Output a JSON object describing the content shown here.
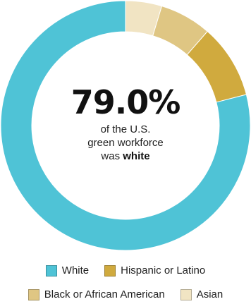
{
  "headline": {
    "value": "79.0%",
    "line1": "of the U.S.",
    "line2": "green workforce",
    "line3_prefix": "was ",
    "line3_bold": "white"
  },
  "legend": [
    {
      "label": "White",
      "color": "#4fc3d6"
    },
    {
      "label": "Hispanic or Latino",
      "color": "#d0aa3e"
    },
    {
      "label": "Black or African American",
      "color": "#dfc683"
    },
    {
      "label": "Asian",
      "color": "#f1e4c3"
    }
  ],
  "chart_data": {
    "type": "pie",
    "variant": "donut",
    "series": [
      {
        "name": "White",
        "value": 79.0,
        "color": "#4fc3d6"
      },
      {
        "name": "Hispanic or Latino",
        "value": 9.6,
        "color": "#d0aa3e"
      },
      {
        "name": "Black or African American",
        "value": 6.7,
        "color": "#dfc683"
      },
      {
        "name": "Asian",
        "value": 4.7,
        "color": "#f1e4c3"
      }
    ],
    "start_angle_deg": 0,
    "direction": "clockwise",
    "legend_position": "bottom"
  }
}
